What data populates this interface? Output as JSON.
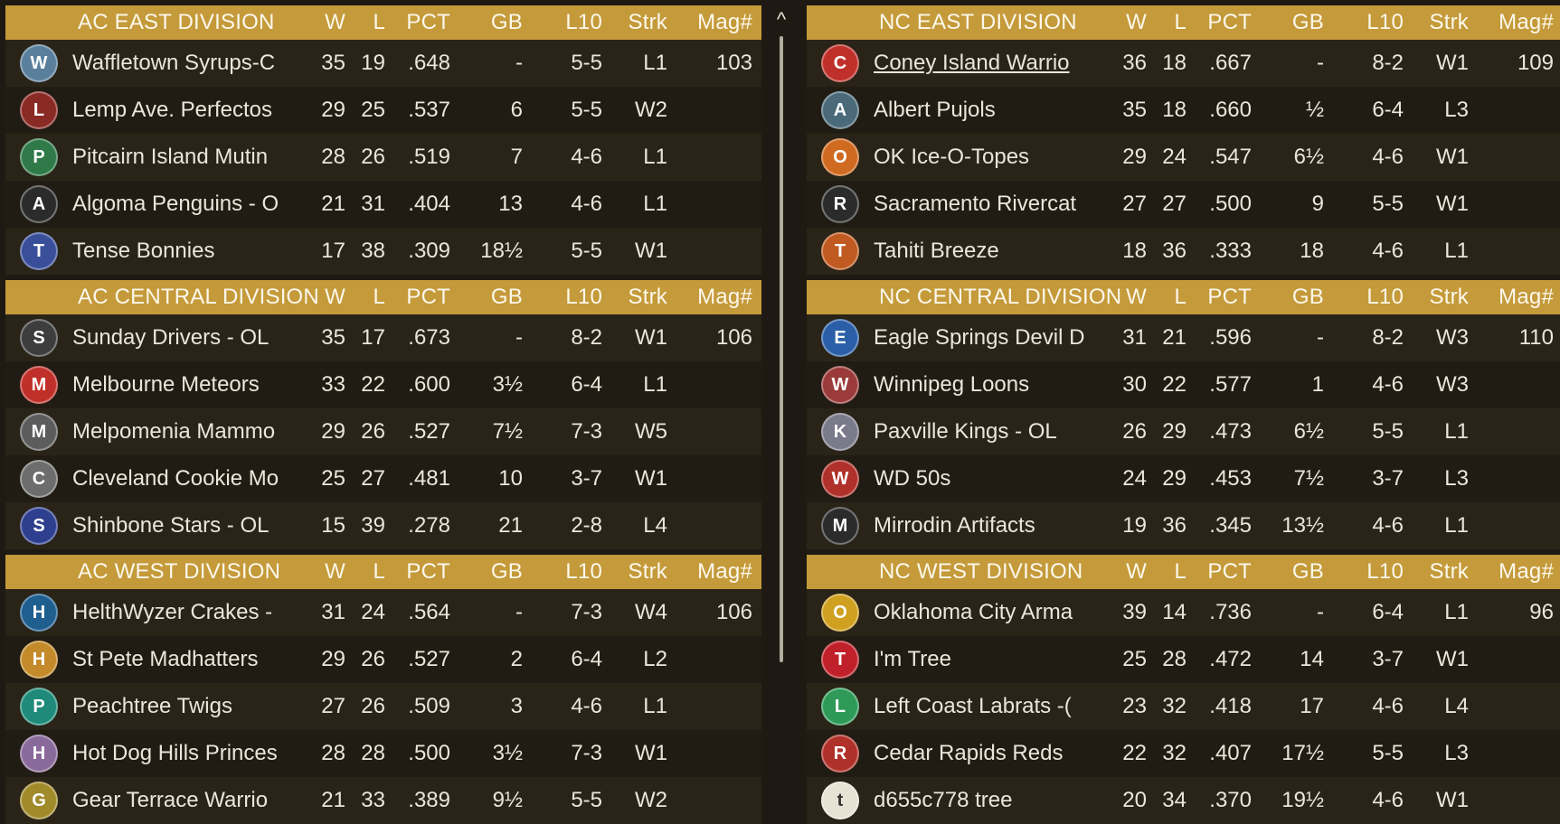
{
  "columns": {
    "w": "W",
    "l": "L",
    "pct": "PCT",
    "gb": "GB",
    "l10": "L10",
    "strk": "Strk",
    "mag": "Mag#"
  },
  "panels": [
    {
      "divisions": [
        {
          "title": "AC EAST DIVISION",
          "teams": [
            {
              "name": "Waffletown Syrups-C",
              "w": "35",
              "l": "19",
              "pct": ".648",
              "gb": "-",
              "l10": "5-5",
              "strk": "L1",
              "mag": "103",
              "logo_icon": "syrup-icon",
              "logo_color": "#5a7f9c",
              "logo_glyph": "W"
            },
            {
              "name": "Lemp Ave. Perfectos",
              "w": "29",
              "l": "25",
              "pct": ".537",
              "gb": "6",
              "l10": "5-5",
              "strk": "W2",
              "mag": "",
              "logo_icon": "monogram-icon",
              "logo_color": "#8a2a25",
              "logo_glyph": "L"
            },
            {
              "name": "Pitcairn Island Mutin",
              "w": "28",
              "l": "26",
              "pct": ".519",
              "gb": "7",
              "l10": "4-6",
              "strk": "L1",
              "mag": "",
              "logo_icon": "shield-icon",
              "logo_color": "#2f7a48",
              "logo_glyph": "P"
            },
            {
              "name": "Algoma Penguins - O",
              "w": "21",
              "l": "31",
              "pct": ".404",
              "gb": "13",
              "l10": "4-6",
              "strk": "L1",
              "mag": "",
              "logo_icon": "penguin-icon",
              "logo_color": "#2b2b2b",
              "logo_glyph": "A"
            },
            {
              "name": "Tense Bonnies",
              "w": "17",
              "l": "38",
              "pct": ".309",
              "gb": "18½",
              "l10": "5-5",
              "strk": "W1",
              "mag": "",
              "logo_icon": "wordmark-icon",
              "logo_color": "#3a4f9a",
              "logo_glyph": "T"
            }
          ]
        },
        {
          "title": "AC CENTRAL DIVISION",
          "teams": [
            {
              "name": "Sunday Drivers - OL",
              "w": "35",
              "l": "17",
              "pct": ".673",
              "gb": "-",
              "l10": "8-2",
              "strk": "W1",
              "mag": "106",
              "logo_icon": "monogram-icon",
              "logo_color": "#3d3d3d",
              "logo_glyph": "S"
            },
            {
              "name": "Melbourne Meteors",
              "w": "33",
              "l": "22",
              "pct": ".600",
              "gb": "3½",
              "l10": "6-4",
              "strk": "L1",
              "mag": "",
              "logo_icon": "meteor-icon",
              "logo_color": "#c0302a",
              "logo_glyph": "M"
            },
            {
              "name": "Melpomenia Mammo",
              "w": "29",
              "l": "26",
              "pct": ".527",
              "gb": "7½",
              "l10": "7-3",
              "strk": "W5",
              "mag": "",
              "logo_icon": "mammoth-icon",
              "logo_color": "#5c5c5c",
              "logo_glyph": "M"
            },
            {
              "name": "Cleveland Cookie Mo",
              "w": "25",
              "l": "27",
              "pct": ".481",
              "gb": "10",
              "l10": "3-7",
              "strk": "W1",
              "mag": "",
              "logo_icon": "diamond-c-icon",
              "logo_color": "#6d6d6d",
              "logo_glyph": "C"
            },
            {
              "name": "Shinbone Stars - OL",
              "w": "15",
              "l": "39",
              "pct": ".278",
              "gb": "21",
              "l10": "2-8",
              "strk": "L4",
              "mag": "",
              "logo_icon": "stars-icon",
              "logo_color": "#2e3f8f",
              "logo_glyph": "S"
            }
          ]
        },
        {
          "title": "AC WEST DIVISION",
          "teams": [
            {
              "name": "HelthWyzer Crakes -",
              "w": "31",
              "l": "24",
              "pct": ".564",
              "gb": "-",
              "l10": "7-3",
              "strk": "W4",
              "mag": "106",
              "logo_icon": "crake-icon",
              "logo_color": "#1f5f8f",
              "logo_glyph": "H"
            },
            {
              "name": "St Pete Madhatters",
              "w": "29",
              "l": "26",
              "pct": ".527",
              "gb": "2",
              "l10": "6-4",
              "strk": "L2",
              "mag": "",
              "logo_icon": "hat-icon",
              "logo_color": "#c48a2a",
              "logo_glyph": "H"
            },
            {
              "name": "Peachtree Twigs",
              "w": "27",
              "l": "26",
              "pct": ".509",
              "gb": "3",
              "l10": "4-6",
              "strk": "L1",
              "mag": "",
              "logo_icon": "p-icon",
              "logo_color": "#1f8a7a",
              "logo_glyph": "P"
            },
            {
              "name": "Hot Dog Hills Princes",
              "w": "28",
              "l": "28",
              "pct": ".500",
              "gb": "3½",
              "l10": "7-3",
              "strk": "W1",
              "mag": "",
              "logo_icon": "crowd-icon",
              "logo_color": "#8a6a9a",
              "logo_glyph": "H"
            },
            {
              "name": "Gear Terrace Warrio",
              "w": "21",
              "l": "33",
              "pct": ".389",
              "gb": "9½",
              "l10": "5-5",
              "strk": "W2",
              "mag": "",
              "logo_icon": "warrior-icon",
              "logo_color": "#a08a2a",
              "logo_glyph": "G"
            }
          ]
        }
      ]
    },
    {
      "divisions": [
        {
          "title": "NC EAST DIVISION",
          "teams": [
            {
              "name": "Coney Island Warrio",
              "w": "36",
              "l": "18",
              "pct": ".667",
              "gb": "-",
              "l10": "8-2",
              "strk": "W1",
              "mag": "109",
              "logo_icon": "c-logo-icon",
              "logo_color": "#c0302a",
              "logo_glyph": "C",
              "link": true
            },
            {
              "name": "Albert Pujols",
              "w": "35",
              "l": "18",
              "pct": ".660",
              "gb": "½",
              "l10": "6-4",
              "strk": "L3",
              "mag": "",
              "logo_icon": "portrait-icon",
              "logo_color": "#4a6a7a",
              "logo_glyph": "A"
            },
            {
              "name": "OK Ice-O-Topes",
              "w": "29",
              "l": "24",
              "pct": ".547",
              "gb": "6½",
              "l10": "4-6",
              "strk": "W1",
              "mag": "",
              "logo_icon": "fish-icon",
              "logo_color": "#d06a20",
              "logo_glyph": "O"
            },
            {
              "name": "Sacramento Rivercat",
              "w": "27",
              "l": "27",
              "pct": ".500",
              "gb": "9",
              "l10": "5-5",
              "strk": "W1",
              "mag": "",
              "logo_icon": "script-icon",
              "logo_color": "#2b2b2b",
              "logo_glyph": "R"
            },
            {
              "name": "Tahiti Breeze",
              "w": "18",
              "l": "36",
              "pct": ".333",
              "gb": "18",
              "l10": "4-6",
              "strk": "L1",
              "mag": "",
              "logo_icon": "diamond-t-icon",
              "logo_color": "#c05a20",
              "logo_glyph": "T"
            }
          ]
        },
        {
          "title": "NC CENTRAL DIVISION",
          "teams": [
            {
              "name": "Eagle Springs Devil D",
              "w": "31",
              "l": "21",
              "pct": ".596",
              "gb": "-",
              "l10": "8-2",
              "strk": "W3",
              "mag": "110",
              "logo_icon": "devil-icon",
              "logo_color": "#2a5fa8",
              "logo_glyph": "E"
            },
            {
              "name": "Winnipeg Loons",
              "w": "30",
              "l": "22",
              "pct": ".577",
              "gb": "1",
              "l10": "4-6",
              "strk": "W3",
              "mag": "",
              "logo_icon": "wordmark-icon",
              "logo_color": "#9a3a3a",
              "logo_glyph": "W"
            },
            {
              "name": "Paxville Kings - OL",
              "w": "26",
              "l": "29",
              "pct": ".473",
              "gb": "6½",
              "l10": "5-5",
              "strk": "L1",
              "mag": "",
              "logo_icon": "cards-icon",
              "logo_color": "#7a7a8a",
              "logo_glyph": "K"
            },
            {
              "name": "WD 50s",
              "w": "24",
              "l": "29",
              "pct": ".453",
              "gb": "7½",
              "l10": "3-7",
              "strk": "L3",
              "mag": "",
              "logo_icon": "diamond-w-icon",
              "logo_color": "#b0302a",
              "logo_glyph": "W"
            },
            {
              "name": "Mirrodin Artifacts",
              "w": "19",
              "l": "36",
              "pct": ".345",
              "gb": "13½",
              "l10": "4-6",
              "strk": "L1",
              "mag": "",
              "logo_icon": "m-icon",
              "logo_color": "#2b2b2b",
              "logo_glyph": "M"
            }
          ]
        },
        {
          "title": "NC WEST DIVISION",
          "teams": [
            {
              "name": "Oklahoma City Arma",
              "w": "39",
              "l": "14",
              "pct": ".736",
              "gb": "-",
              "l10": "6-4",
              "strk": "L1",
              "mag": "96",
              "logo_icon": "fox-icon",
              "logo_color": "#d0a020",
              "logo_glyph": "O"
            },
            {
              "name": "I'm Tree",
              "w": "25",
              "l": "28",
              "pct": ".472",
              "gb": "14",
              "l10": "3-7",
              "strk": "W1",
              "mag": "",
              "logo_icon": "t-icon",
              "logo_color": "#c0202a",
              "logo_glyph": "T"
            },
            {
              "name": "Left Coast Labrats -(",
              "w": "23",
              "l": "32",
              "pct": ".418",
              "gb": "17",
              "l10": "4-6",
              "strk": "L4",
              "mag": "",
              "logo_icon": "shield-icon",
              "logo_color": "#2f9a58",
              "logo_glyph": "L"
            },
            {
              "name": "Cedar Rapids Reds",
              "w": "22",
              "l": "32",
              "pct": ".407",
              "gb": "17½",
              "l10": "5-5",
              "strk": "L3",
              "mag": "",
              "logo_icon": "ball-icon",
              "logo_color": "#b0302a",
              "logo_glyph": "R"
            },
            {
              "name": "d655c778 tree",
              "w": "20",
              "l": "34",
              "pct": ".370",
              "gb": "19½",
              "l10": "4-6",
              "strk": "W1",
              "mag": "",
              "logo_icon": "t-circle-icon",
              "logo_color": "#e8e2d4",
              "logo_glyph": "t"
            }
          ]
        }
      ]
    }
  ],
  "scroll_glyph": "^"
}
